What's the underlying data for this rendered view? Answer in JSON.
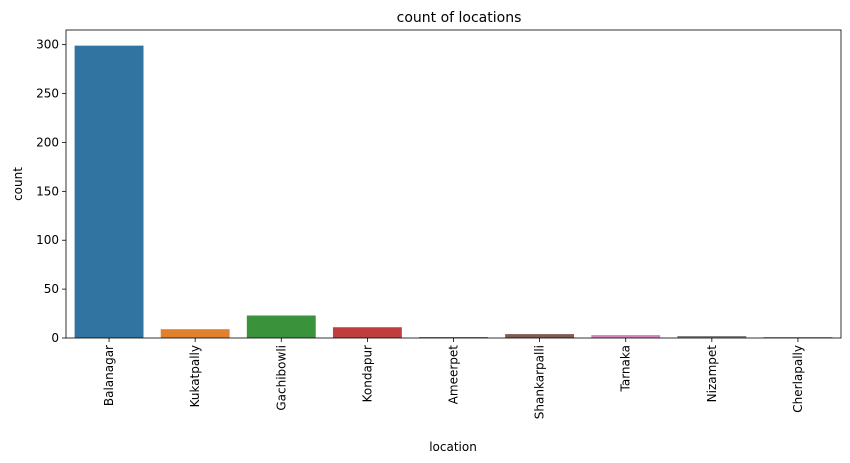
{
  "chart_data": {
    "type": "bar",
    "title": "count of locations",
    "xlabel": "location",
    "ylabel": "count",
    "categories": [
      "Balanagar",
      "Kukatpally",
      "Gachibowli",
      "Kondapur",
      "Ameerpet",
      "Shankarpalli",
      "Tarnaka",
      "Nizampet",
      "Cherlapally"
    ],
    "values": [
      299,
      9,
      23,
      11,
      1,
      4,
      3,
      2,
      1
    ],
    "colors": [
      "#3274a1",
      "#e1812c",
      "#3a923a",
      "#c03d3e",
      "#9372b2",
      "#845b53",
      "#d684bd",
      "#7f7f7f",
      "#a9aa35"
    ],
    "ylim": [
      0,
      315
    ],
    "yticks": [
      0,
      50,
      100,
      150,
      200,
      250,
      300
    ],
    "grid": false,
    "legend": "none"
  }
}
